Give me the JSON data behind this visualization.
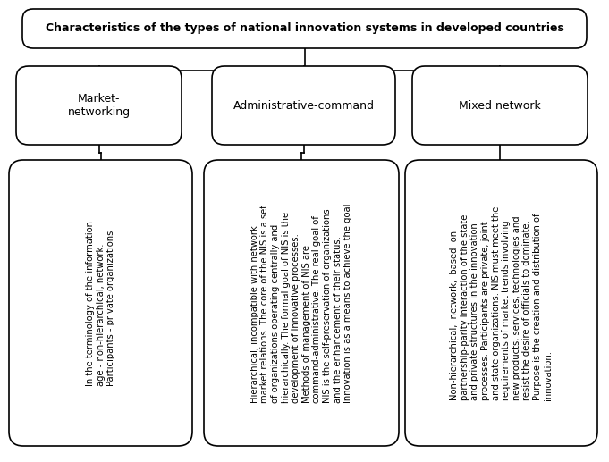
{
  "title": "Characteristics of the types of national innovation systems in developed countries",
  "categories": [
    "Market-\nnetworking",
    "Administrative-command",
    "Mixed network"
  ],
  "descriptions": [
    "In the terminology of the information\nage - non-hierarchical, network.\nParticipants - private organizations",
    "Hierarchical, incompatible with network\nmarket relations. The core of the NIS is a set\nof organizations operating centrally and\nhierarchically. The formal goal of NIS is the\ndevelopment of innovative processes.\nMethods of management of NIS are\ncommand-administrative. The real goal of\nNIS is the self-preservation of organizations\nand the enhancement of their status.\nInnovation is as a means to achieve the goal",
    "Non-hierarchical,  network,  based  on\npartnership-parity interaction of the state\nand private structures in the innovation\nprocesses. Participants are private, joint\nand state organizations. NIS must meet the\nrequirements of market trends involving\nnew products, services, technologies and\nresist the desire of officials to dominate.\nPurpose is the creation and distribution of\ninnovation."
  ],
  "bg_color": "#ffffff",
  "box_edge_color": "#000000",
  "text_color": "#000000",
  "title_fontsize": 9,
  "cat_fontsize": 9,
  "desc_fontsize": 7.2,
  "title_bold": true,
  "fig_width": 6.81,
  "fig_height": 5.17,
  "dpi": 100
}
